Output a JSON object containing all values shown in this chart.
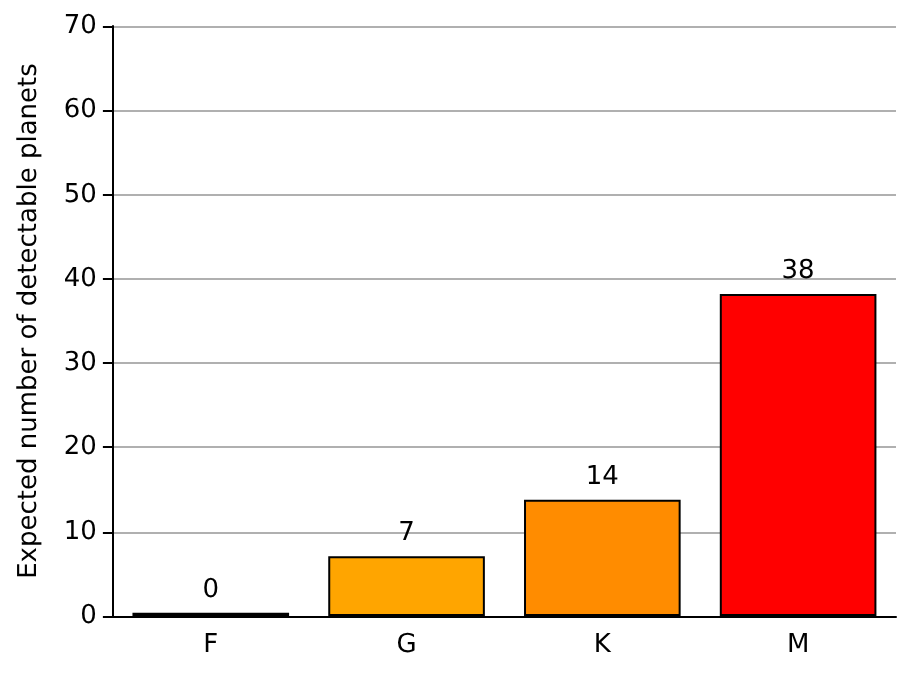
{
  "chart_data": {
    "type": "bar",
    "ylabel": "Expected number of detectable planets",
    "categories": [
      "F",
      "G",
      "K",
      "M"
    ],
    "values": [
      0.4,
      7.1,
      13.8,
      38.2
    ],
    "colors": [
      "#ffff00",
      "#ffa500",
      "#ff8c00",
      "#ff0000"
    ],
    "value_labels": [
      "0",
      "7",
      "14",
      "38"
    ],
    "ylim": [
      0,
      70
    ],
    "yticks": [
      0,
      10,
      20,
      30,
      40,
      50,
      60,
      70
    ],
    "grid": "y"
  }
}
